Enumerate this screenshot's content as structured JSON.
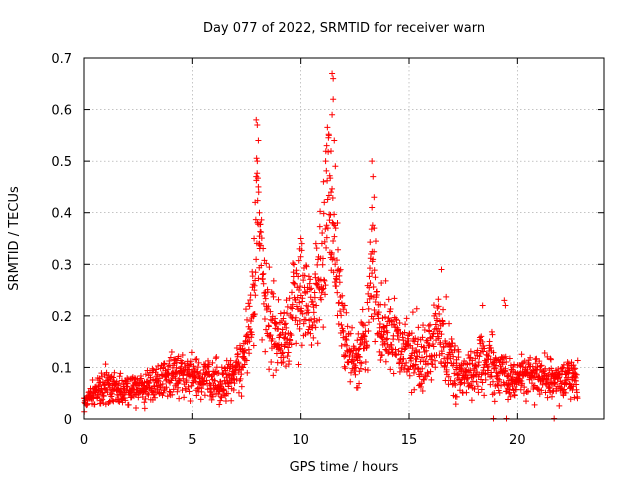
{
  "chart_data": {
    "type": "scatter",
    "title": "Day 077 of 2022, SRMTID for receiver warn",
    "xlabel": "GPS time / hours",
    "ylabel": "SRMTID / TECUs",
    "xlim": [
      0,
      24
    ],
    "ylim": [
      0,
      0.7
    ],
    "xticks": [
      0,
      5,
      10,
      15,
      20
    ],
    "yticks": [
      0,
      0.1,
      0.2,
      0.3,
      0.4,
      0.5,
      0.6,
      0.7
    ],
    "grid": true,
    "marker": "plus",
    "color": "#ff0000",
    "x_end": 22.8,
    "series": [
      {
        "name": "SRMTID",
        "envelope": [
          [
            0.0,
            0.035,
            0.02
          ],
          [
            0.5,
            0.05,
            0.025
          ],
          [
            1.0,
            0.065,
            0.03
          ],
          [
            1.5,
            0.06,
            0.03
          ],
          [
            2.0,
            0.055,
            0.03
          ],
          [
            2.5,
            0.06,
            0.03
          ],
          [
            3.0,
            0.065,
            0.03
          ],
          [
            3.5,
            0.075,
            0.035
          ],
          [
            4.0,
            0.08,
            0.035
          ],
          [
            4.5,
            0.085,
            0.035
          ],
          [
            5.0,
            0.085,
            0.04
          ],
          [
            5.5,
            0.08,
            0.035
          ],
          [
            6.0,
            0.075,
            0.035
          ],
          [
            6.5,
            0.07,
            0.035
          ],
          [
            7.0,
            0.085,
            0.04
          ],
          [
            7.5,
            0.15,
            0.06
          ],
          [
            7.9,
            0.25,
            0.08
          ],
          [
            8.0,
            0.45,
            0.12
          ],
          [
            8.2,
            0.3,
            0.1
          ],
          [
            8.6,
            0.18,
            0.07
          ],
          [
            9.0,
            0.15,
            0.06
          ],
          [
            9.5,
            0.16,
            0.07
          ],
          [
            9.7,
            0.22,
            0.1
          ],
          [
            10.0,
            0.24,
            0.09
          ],
          [
            10.5,
            0.2,
            0.08
          ],
          [
            11.0,
            0.3,
            0.12
          ],
          [
            11.3,
            0.45,
            0.14
          ],
          [
            11.6,
            0.32,
            0.1
          ],
          [
            12.0,
            0.15,
            0.07
          ],
          [
            12.5,
            0.12,
            0.05
          ],
          [
            13.0,
            0.15,
            0.06
          ],
          [
            13.3,
            0.3,
            0.12
          ],
          [
            13.6,
            0.18,
            0.07
          ],
          [
            14.0,
            0.17,
            0.07
          ],
          [
            14.5,
            0.14,
            0.06
          ],
          [
            15.0,
            0.13,
            0.06
          ],
          [
            15.5,
            0.12,
            0.06
          ],
          [
            16.0,
            0.14,
            0.07
          ],
          [
            16.5,
            0.17,
            0.07
          ],
          [
            17.0,
            0.1,
            0.05
          ],
          [
            17.5,
            0.08,
            0.04
          ],
          [
            18.0,
            0.09,
            0.04
          ],
          [
            18.5,
            0.11,
            0.05
          ],
          [
            19.0,
            0.09,
            0.05
          ],
          [
            19.5,
            0.08,
            0.04
          ],
          [
            20.0,
            0.08,
            0.04
          ],
          [
            20.5,
            0.09,
            0.04
          ],
          [
            21.0,
            0.08,
            0.04
          ],
          [
            21.5,
            0.075,
            0.04
          ],
          [
            22.0,
            0.075,
            0.035
          ],
          [
            22.8,
            0.075,
            0.035
          ]
        ],
        "peaks": [
          [
            7.95,
            0.58
          ],
          [
            8.0,
            0.57
          ],
          [
            8.05,
            0.54
          ],
          [
            8.0,
            0.5
          ],
          [
            7.95,
            0.47
          ],
          [
            8.05,
            0.45
          ],
          [
            7.9,
            0.42
          ],
          [
            8.1,
            0.4
          ],
          [
            7.85,
            0.35
          ],
          [
            8.1,
            0.34
          ],
          [
            11.05,
            0.46
          ],
          [
            11.15,
            0.5
          ],
          [
            11.2,
            0.53
          ],
          [
            11.3,
            0.55
          ],
          [
            11.45,
            0.67
          ],
          [
            11.5,
            0.66
          ],
          [
            11.5,
            0.62
          ],
          [
            11.45,
            0.59
          ],
          [
            11.55,
            0.54
          ],
          [
            11.6,
            0.49
          ],
          [
            11.4,
            0.44
          ],
          [
            11.7,
            0.38
          ],
          [
            13.3,
            0.5
          ],
          [
            13.35,
            0.47
          ],
          [
            13.4,
            0.43
          ],
          [
            13.3,
            0.41
          ],
          [
            13.4,
            0.37
          ],
          [
            13.25,
            0.32
          ],
          [
            10.0,
            0.35
          ],
          [
            10.05,
            0.34
          ],
          [
            9.95,
            0.33
          ],
          [
            10.7,
            0.34
          ],
          [
            16.5,
            0.29
          ],
          [
            19.4,
            0.23
          ],
          [
            19.45,
            0.22
          ],
          [
            18.4,
            0.22
          ],
          [
            22.5,
            0.11
          ]
        ],
        "zeros": [
          18.9,
          19.5,
          21.7
        ]
      }
    ]
  }
}
